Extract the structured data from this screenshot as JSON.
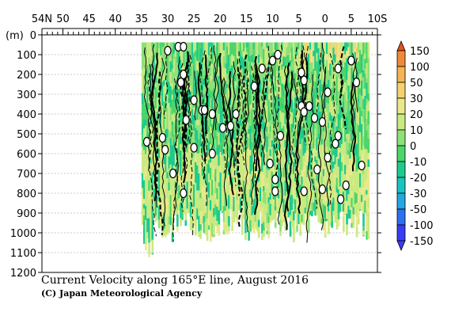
{
  "chart_data": {
    "type": "heatmap",
    "title": "Current Velocity along 165°E line, August 2016",
    "credit": "(C) Japan Meteorological Agency",
    "ylabel": "(m)",
    "x_ticks": [
      "54N",
      "50",
      "45",
      "40",
      "35",
      "30",
      "25",
      "20",
      "15",
      "10",
      "5",
      "0",
      "5",
      "10S"
    ],
    "x_tick_values": [
      54,
      50,
      45,
      40,
      35,
      30,
      25,
      20,
      15,
      10,
      5,
      0,
      -5,
      -10
    ],
    "xlim": [
      54,
      -10
    ],
    "y_ticks": [
      "0",
      "100",
      "200",
      "300",
      "400",
      "500",
      "600",
      "700",
      "800",
      "900",
      "1000",
      "1100",
      "1200"
    ],
    "y_tick_values": [
      0,
      100,
      200,
      300,
      400,
      500,
      600,
      700,
      800,
      900,
      1000,
      1100,
      1200
    ],
    "ylim": [
      0,
      1200
    ],
    "grid": true,
    "colorbar": {
      "levels": [
        "150",
        "100",
        "50",
        "30",
        "20",
        "10",
        "0",
        "-10",
        "-20",
        "-30",
        "-50",
        "-100",
        "-150"
      ],
      "colors": [
        "#e8501c",
        "#f08a3a",
        "#f5b455",
        "#f5d170",
        "#eae88a",
        "#c9ea80",
        "#8fe07a",
        "#4cd56a",
        "#1dcb8e",
        "#18c4c0",
        "#25a7e0",
        "#2f6ff0",
        "#3a3cf5"
      ]
    },
    "contour_zero_labels": [
      {
        "lat": 30,
        "depth": 80
      },
      {
        "lat": 28,
        "depth": 60
      },
      {
        "lat": 27,
        "depth": 60
      },
      {
        "lat": 27,
        "depth": 200
      },
      {
        "lat": 27.5,
        "depth": 240
      },
      {
        "lat": 25,
        "depth": 330
      },
      {
        "lat": 23.5,
        "depth": 380
      },
      {
        "lat": 23,
        "depth": 380
      },
      {
        "lat": 21.5,
        "depth": 400
      },
      {
        "lat": 26.5,
        "depth": 430
      },
      {
        "lat": 19.5,
        "depth": 470
      },
      {
        "lat": 18,
        "depth": 460
      },
      {
        "lat": 17,
        "depth": 400
      },
      {
        "lat": 13.5,
        "depth": 260
      },
      {
        "lat": 12,
        "depth": 170
      },
      {
        "lat": 10,
        "depth": 130
      },
      {
        "lat": 9,
        "depth": 100
      },
      {
        "lat": 4.5,
        "depth": 190
      },
      {
        "lat": 4,
        "depth": 230
      },
      {
        "lat": 4.5,
        "depth": 360
      },
      {
        "lat": 4,
        "depth": 390
      },
      {
        "lat": 3,
        "depth": 360
      },
      {
        "lat": 2,
        "depth": 420
      },
      {
        "lat": 0.5,
        "depth": 440
      },
      {
        "lat": -0.5,
        "depth": 290
      },
      {
        "lat": -2.5,
        "depth": 170
      },
      {
        "lat": -5,
        "depth": 130
      },
      {
        "lat": -6,
        "depth": 240
      },
      {
        "lat": 34,
        "depth": 540
      },
      {
        "lat": 31,
        "depth": 520
      },
      {
        "lat": 30.5,
        "depth": 580
      },
      {
        "lat": 25,
        "depth": 570
      },
      {
        "lat": 21.5,
        "depth": 600
      },
      {
        "lat": 10.5,
        "depth": 650
      },
      {
        "lat": 9.5,
        "depth": 730
      },
      {
        "lat": 9.5,
        "depth": 790
      },
      {
        "lat": 8.5,
        "depth": 510
      },
      {
        "lat": 1.5,
        "depth": 680
      },
      {
        "lat": -0.5,
        "depth": 620
      },
      {
        "lat": -2,
        "depth": 550
      },
      {
        "lat": -2.5,
        "depth": 510
      },
      {
        "lat": -7,
        "depth": 660
      },
      {
        "lat": 29,
        "depth": 700
      },
      {
        "lat": 27,
        "depth": 800
      },
      {
        "lat": 4,
        "depth": 790
      },
      {
        "lat": 0.5,
        "depth": 780
      },
      {
        "lat": -4,
        "depth": 760
      },
      {
        "lat": -3,
        "depth": 830
      }
    ]
  }
}
